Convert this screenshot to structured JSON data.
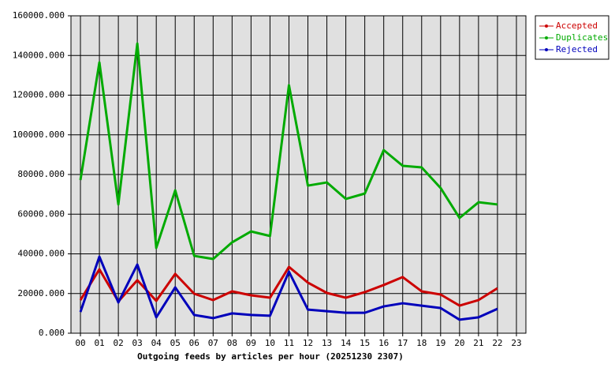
{
  "chart_data": {
    "type": "line",
    "title": "Outgoing feeds by articles per hour (20251230 2307)",
    "categories": [
      "00",
      "01",
      "02",
      "03",
      "04",
      "05",
      "06",
      "07",
      "08",
      "09",
      "10",
      "11",
      "12",
      "13",
      "14",
      "15",
      "16",
      "17",
      "18",
      "19",
      "20",
      "21",
      "22",
      "23"
    ],
    "series": [
      {
        "name": "Accepted",
        "color": "#cc0000",
        "values": [
          16700,
          32200,
          16000,
          26700,
          16300,
          29900,
          19900,
          16700,
          21100,
          19100,
          17900,
          33400,
          25500,
          20300,
          17900,
          20700,
          24300,
          28300,
          21100,
          19500,
          13900,
          16700,
          22700,
          null
        ]
      },
      {
        "name": "Duplicates",
        "color": "#00aa00",
        "values": [
          77200,
          136500,
          64900,
          146000,
          43000,
          72000,
          39000,
          37400,
          45800,
          51300,
          49000,
          125000,
          74400,
          76000,
          67700,
          70400,
          92300,
          84400,
          83600,
          73200,
          58100,
          66000,
          64900,
          null
        ]
      },
      {
        "name": "Rejected",
        "color": "#0000bb",
        "values": [
          10700,
          38600,
          15500,
          34600,
          8000,
          23100,
          9200,
          7600,
          10000,
          9200,
          8800,
          31000,
          11900,
          11100,
          10300,
          10300,
          13500,
          15100,
          13900,
          12700,
          6800,
          8000,
          12300,
          null
        ]
      }
    ],
    "ylim": [
      0,
      160000
    ],
    "yticks": [
      {
        "value": 0,
        "label": "0.000"
      },
      {
        "value": 20000,
        "label": "20000.000"
      },
      {
        "value": 40000,
        "label": "40000.000"
      },
      {
        "value": 60000,
        "label": "60000.000"
      },
      {
        "value": 80000,
        "label": "80000.000"
      },
      {
        "value": 100000,
        "label": "100000.000"
      },
      {
        "value": 120000,
        "label": "120000.000"
      },
      {
        "value": 140000,
        "label": "140000.000"
      },
      {
        "value": 160000,
        "label": "160000.000"
      }
    ],
    "grid": true,
    "legend": "outside-top-right",
    "background": "#e0e0e0"
  }
}
